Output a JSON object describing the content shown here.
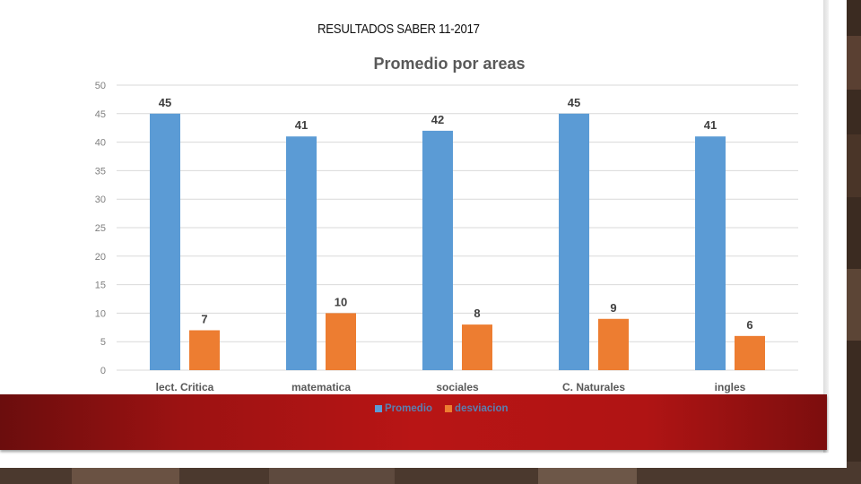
{
  "slide": {
    "title": "RESULTADOS SABER 11-2017"
  },
  "colors": {
    "promedio": "#5b9bd5",
    "desviacion": "#ed7d31",
    "band": "#b81515"
  },
  "chart_data": {
    "type": "bar",
    "title": "Promedio por areas",
    "categories": [
      "lect. Critica",
      "matematica",
      "sociales",
      "C. Naturales",
      "ingles"
    ],
    "series": [
      {
        "name": "Promedio",
        "values": [
          45,
          41,
          42,
          45,
          41
        ]
      },
      {
        "name": "desviacion",
        "values": [
          7,
          10,
          8,
          9,
          6
        ]
      }
    ],
    "ylim": [
      0,
      50
    ],
    "yticks": [
      0,
      5,
      10,
      15,
      20,
      25,
      30,
      35,
      40,
      45,
      50
    ],
    "grid": true,
    "legend": "bottom",
    "data_labels": true
  }
}
